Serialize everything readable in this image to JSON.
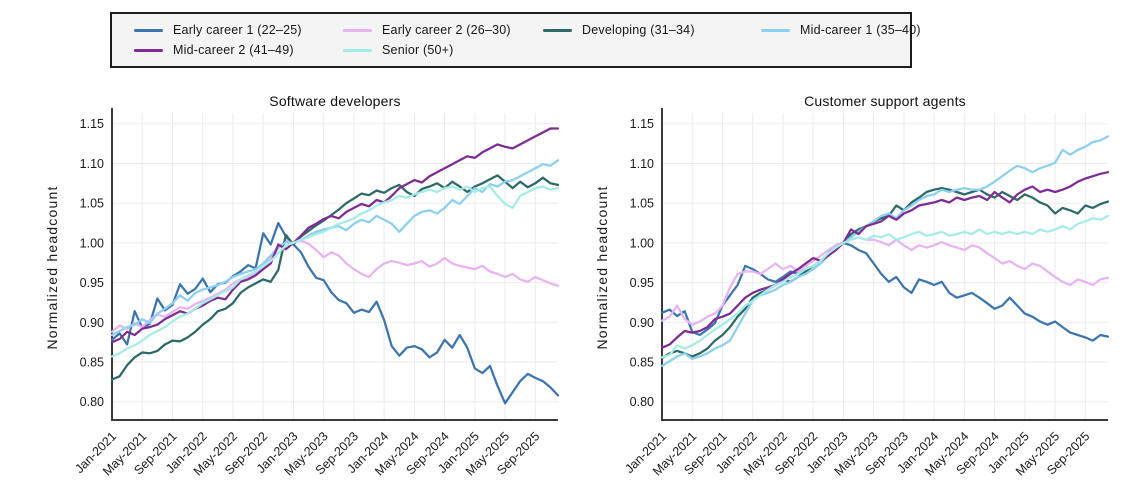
{
  "legend": {
    "items": [
      {
        "label": "Early career 1 (22–25)",
        "color": "#3b74af"
      },
      {
        "label": "Early career 2 (26–30)",
        "color": "#e7b3f0"
      },
      {
        "label": "Developing (31–34)",
        "color": "#2d6967"
      },
      {
        "label": "Mid-career 1 (35–40)",
        "color": "#8cd0f0"
      },
      {
        "label": "Mid-career 2 (41–49)",
        "color": "#7c2c93"
      },
      {
        "label": "Senior (50+)",
        "color": "#a6ece6"
      }
    ]
  },
  "chart_data": [
    {
      "type": "line",
      "title": "Software developers",
      "xlabel": "",
      "ylabel": "Normalized headcount",
      "x_unit": "month",
      "x_range": [
        "Jan-2021",
        "Dec-2025"
      ],
      "xtick_labels": [
        "Jan-2021",
        "May-2021",
        "Sep-2021",
        "Jan-2022",
        "May-2022",
        "Sep-2022",
        "Jan-2023",
        "May-2023",
        "Sep-2023",
        "Jan-2024",
        "May-2024",
        "Sep-2024",
        "Jan-2025",
        "May-2025",
        "Sep-2025"
      ],
      "xtick_indices": [
        0,
        4,
        8,
        12,
        16,
        20,
        24,
        28,
        32,
        36,
        40,
        44,
        48,
        52,
        56
      ],
      "yticks": [
        0.8,
        0.85,
        0.9,
        0.95,
        1.0,
        1.05,
        1.1,
        1.15
      ],
      "ylim": [
        0.777,
        1.161
      ],
      "grid": true,
      "legend_position": "top-outside",
      "margin_left": 112,
      "series": [
        {
          "name": "Early career 1 (22–25)",
          "color": "#3b74af",
          "values": [
            0.878,
            0.886,
            0.872,
            0.914,
            0.893,
            0.898,
            0.93,
            0.915,
            0.922,
            0.948,
            0.936,
            0.942,
            0.955,
            0.938,
            0.948,
            0.95,
            0.958,
            0.964,
            0.972,
            0.968,
            1.012,
            0.998,
            1.025,
            1.008,
            0.998,
            0.988,
            0.97,
            0.956,
            0.953,
            0.938,
            0.928,
            0.924,
            0.912,
            0.916,
            0.913,
            0.926,
            0.903,
            0.87,
            0.858,
            0.868,
            0.87,
            0.866,
            0.856,
            0.862,
            0.878,
            0.868,
            0.884,
            0.868,
            0.842,
            0.836,
            0.845,
            0.82,
            0.798,
            0.812,
            0.826,
            0.835,
            0.83,
            0.826,
            0.818,
            0.808
          ]
        },
        {
          "name": "Early career 2 (26–30)",
          "color": "#e7b3f0",
          "values": [
            0.888,
            0.896,
            0.892,
            0.899,
            0.894,
            0.903,
            0.91,
            0.907,
            0.913,
            0.919,
            0.917,
            0.923,
            0.927,
            0.931,
            0.936,
            0.941,
            0.949,
            0.954,
            0.957,
            0.961,
            0.973,
            0.98,
            0.993,
            1.003,
            1.0,
            1.003,
            0.999,
            0.991,
            0.982,
            0.988,
            0.984,
            0.974,
            0.967,
            0.961,
            0.957,
            0.967,
            0.974,
            0.977,
            0.975,
            0.972,
            0.974,
            0.977,
            0.97,
            0.974,
            0.981,
            0.974,
            0.971,
            0.969,
            0.967,
            0.971,
            0.964,
            0.961,
            0.957,
            0.961,
            0.954,
            0.951,
            0.957,
            0.953,
            0.949,
            0.946
          ]
        },
        {
          "name": "Developing (31–34)",
          "color": "#2d6967",
          "values": [
            0.828,
            0.832,
            0.846,
            0.856,
            0.862,
            0.861,
            0.864,
            0.872,
            0.877,
            0.876,
            0.881,
            0.888,
            0.897,
            0.904,
            0.914,
            0.917,
            0.924,
            0.937,
            0.944,
            0.949,
            0.954,
            0.951,
            0.966,
            1.01,
            0.998,
            1.008,
            1.015,
            1.022,
            1.028,
            1.035,
            1.042,
            1.05,
            1.056,
            1.062,
            1.06,
            1.066,
            1.063,
            1.069,
            1.073,
            1.064,
            1.059,
            1.068,
            1.071,
            1.075,
            1.069,
            1.077,
            1.071,
            1.064,
            1.071,
            1.075,
            1.08,
            1.085,
            1.077,
            1.069,
            1.077,
            1.07,
            1.075,
            1.082,
            1.075,
            1.073
          ]
        },
        {
          "name": "Mid-career 1 (35–40)",
          "color": "#8cd0f0",
          "values": [
            0.884,
            0.889,
            0.894,
            0.897,
            0.904,
            0.899,
            0.911,
            0.917,
            0.924,
            0.934,
            0.927,
            0.937,
            0.941,
            0.944,
            0.947,
            0.951,
            0.957,
            0.961,
            0.964,
            0.967,
            0.974,
            0.984,
            0.994,
            1.001,
            1.0,
            1.004,
            1.009,
            1.014,
            1.017,
            1.019,
            1.021,
            1.016,
            1.024,
            1.029,
            1.026,
            1.034,
            1.029,
            1.024,
            1.014,
            1.024,
            1.034,
            1.039,
            1.041,
            1.037,
            1.044,
            1.054,
            1.049,
            1.059,
            1.069,
            1.064,
            1.074,
            1.071,
            1.077,
            1.079,
            1.084,
            1.089,
            1.094,
            1.099,
            1.097,
            1.104
          ]
        },
        {
          "name": "Mid-career 2 (41–49)",
          "color": "#7c2c93",
          "values": [
            0.875,
            0.879,
            0.888,
            0.884,
            0.892,
            0.894,
            0.897,
            0.904,
            0.909,
            0.914,
            0.911,
            0.917,
            0.921,
            0.927,
            0.931,
            0.929,
            0.941,
            0.951,
            0.954,
            0.959,
            0.967,
            0.974,
            0.998,
            0.992,
            1.0,
            1.009,
            1.019,
            1.024,
            1.03,
            1.034,
            1.031,
            1.039,
            1.044,
            1.049,
            1.046,
            1.054,
            1.051,
            1.059,
            1.069,
            1.074,
            1.079,
            1.076,
            1.084,
            1.089,
            1.094,
            1.099,
            1.104,
            1.109,
            1.107,
            1.114,
            1.119,
            1.124,
            1.121,
            1.119,
            1.124,
            1.129,
            1.134,
            1.139,
            1.144,
            1.144
          ]
        },
        {
          "name": "Senior (50+)",
          "color": "#a6ece6",
          "values": [
            0.857,
            0.861,
            0.867,
            0.871,
            0.877,
            0.884,
            0.889,
            0.894,
            0.901,
            0.907,
            0.911,
            0.917,
            0.924,
            0.929,
            0.934,
            0.939,
            0.944,
            0.954,
            0.959,
            0.964,
            0.971,
            0.977,
            0.987,
            0.997,
            1.0,
            1.004,
            1.007,
            1.011,
            1.014,
            1.019,
            1.024,
            1.027,
            1.031,
            1.037,
            1.041,
            1.047,
            1.051,
            1.054,
            1.059,
            1.057,
            1.061,
            1.064,
            1.067,
            1.064,
            1.069,
            1.071,
            1.067,
            1.071,
            1.064,
            1.069,
            1.071,
            1.059,
            1.049,
            1.044,
            1.059,
            1.064,
            1.069,
            1.071,
            1.067,
            1.069
          ]
        }
      ]
    },
    {
      "type": "line",
      "title": "Customer support agents",
      "xlabel": "",
      "ylabel": "Normalized headcount",
      "x_unit": "month",
      "x_range": [
        "Jan-2021",
        "Dec-2025"
      ],
      "xtick_labels": [
        "Jan-2021",
        "May-2021",
        "Sep-2021",
        "Jan-2022",
        "May-2022",
        "Sep-2022",
        "Jan-2023",
        "May-2023",
        "Sep-2023",
        "Jan-2024",
        "May-2024",
        "Sep-2024",
        "Jan-2025",
        "May-2025",
        "Sep-2025"
      ],
      "xtick_indices": [
        0,
        4,
        8,
        12,
        16,
        20,
        24,
        28,
        32,
        36,
        40,
        44,
        48,
        52,
        56
      ],
      "yticks": [
        0.8,
        0.85,
        0.9,
        0.95,
        1.0,
        1.05,
        1.1,
        1.15
      ],
      "ylim": [
        0.777,
        1.161
      ],
      "grid": true,
      "legend_position": "top-outside",
      "margin_left": 89,
      "series": [
        {
          "name": "Early career 1 (22–25)",
          "color": "#3b74af",
          "values": [
            0.912,
            0.916,
            0.908,
            0.914,
            0.888,
            0.884,
            0.891,
            0.899,
            0.921,
            0.934,
            0.947,
            0.971,
            0.967,
            0.961,
            0.954,
            0.951,
            0.957,
            0.964,
            0.961,
            0.967,
            0.971,
            0.977,
            0.987,
            0.997,
            1.0,
            0.997,
            0.991,
            0.987,
            0.974,
            0.961,
            0.951,
            0.957,
            0.944,
            0.937,
            0.954,
            0.951,
            0.947,
            0.951,
            0.937,
            0.931,
            0.934,
            0.937,
            0.931,
            0.924,
            0.917,
            0.921,
            0.931,
            0.921,
            0.911,
            0.907,
            0.901,
            0.897,
            0.901,
            0.894,
            0.887,
            0.884,
            0.881,
            0.877,
            0.884,
            0.882
          ]
        },
        {
          "name": "Early career 2 (26–30)",
          "color": "#e7b3f0",
          "values": [
            0.902,
            0.907,
            0.921,
            0.904,
            0.897,
            0.901,
            0.907,
            0.911,
            0.921,
            0.944,
            0.961,
            0.964,
            0.964,
            0.961,
            0.967,
            0.974,
            0.967,
            0.971,
            0.964,
            0.971,
            0.977,
            0.984,
            0.991,
            0.997,
            1.0,
            1.004,
            1.007,
            1.004,
            1.004,
            1.001,
            0.997,
            1.004,
            0.997,
            0.991,
            0.997,
            0.994,
            0.997,
            1.001,
            0.997,
            0.994,
            0.991,
            0.997,
            0.994,
            0.987,
            0.981,
            0.974,
            0.977,
            0.971,
            0.967,
            0.974,
            0.971,
            0.964,
            0.957,
            0.951,
            0.947,
            0.954,
            0.951,
            0.947,
            0.954,
            0.956
          ]
        },
        {
          "name": "Developing (31–34)",
          "color": "#2d6967",
          "values": [
            0.855,
            0.861,
            0.864,
            0.861,
            0.857,
            0.861,
            0.867,
            0.877,
            0.884,
            0.894,
            0.907,
            0.917,
            0.931,
            0.937,
            0.941,
            0.947,
            0.954,
            0.951,
            0.957,
            0.964,
            0.971,
            0.977,
            0.984,
            0.994,
            1.0,
            1.011,
            1.017,
            1.021,
            1.027,
            1.031,
            1.034,
            1.047,
            1.041,
            1.051,
            1.057,
            1.064,
            1.067,
            1.069,
            1.067,
            1.064,
            1.061,
            1.064,
            1.067,
            1.061,
            1.057,
            1.064,
            1.059,
            1.054,
            1.061,
            1.057,
            1.051,
            1.047,
            1.037,
            1.044,
            1.041,
            1.037,
            1.047,
            1.044,
            1.049,
            1.052
          ]
        },
        {
          "name": "Mid-career 1 (35–40)",
          "color": "#8cd0f0",
          "values": [
            0.845,
            0.851,
            0.857,
            0.861,
            0.854,
            0.857,
            0.861,
            0.867,
            0.871,
            0.877,
            0.894,
            0.911,
            0.927,
            0.934,
            0.937,
            0.941,
            0.947,
            0.951,
            0.957,
            0.961,
            0.967,
            0.974,
            0.984,
            0.991,
            1.0,
            1.007,
            1.014,
            1.021,
            1.027,
            1.034,
            1.037,
            1.031,
            1.041,
            1.047,
            1.054,
            1.059,
            1.061,
            1.067,
            1.064,
            1.067,
            1.069,
            1.067,
            1.067,
            1.071,
            1.077,
            1.084,
            1.091,
            1.097,
            1.094,
            1.089,
            1.094,
            1.097,
            1.101,
            1.117,
            1.111,
            1.117,
            1.121,
            1.127,
            1.129,
            1.134
          ]
        },
        {
          "name": "Mid-career 2 (41–49)",
          "color": "#7c2c93",
          "values": [
            0.868,
            0.872,
            0.881,
            0.889,
            0.887,
            0.889,
            0.894,
            0.904,
            0.907,
            0.911,
            0.921,
            0.931,
            0.937,
            0.941,
            0.944,
            0.947,
            0.954,
            0.961,
            0.967,
            0.974,
            0.981,
            0.977,
            0.984,
            0.991,
            1.0,
            1.017,
            1.011,
            1.021,
            1.024,
            1.027,
            1.034,
            1.029,
            1.037,
            1.041,
            1.047,
            1.049,
            1.051,
            1.054,
            1.051,
            1.057,
            1.054,
            1.057,
            1.059,
            1.054,
            1.064,
            1.057,
            1.051,
            1.061,
            1.067,
            1.071,
            1.064,
            1.067,
            1.064,
            1.067,
            1.071,
            1.077,
            1.081,
            1.084,
            1.087,
            1.089
          ]
        },
        {
          "name": "Senior (50+)",
          "color": "#a6ece6",
          "values": [
            0.856,
            0.859,
            0.871,
            0.867,
            0.871,
            0.877,
            0.884,
            0.891,
            0.897,
            0.904,
            0.911,
            0.921,
            0.927,
            0.934,
            0.941,
            0.947,
            0.951,
            0.957,
            0.961,
            0.967,
            0.971,
            0.977,
            0.987,
            0.994,
            1.0,
            1.004,
            1.007,
            1.004,
            1.009,
            1.007,
            1.011,
            1.004,
            1.007,
            1.011,
            1.014,
            1.009,
            1.011,
            1.014,
            1.009,
            1.011,
            1.014,
            1.011,
            1.017,
            1.011,
            1.014,
            1.011,
            1.014,
            1.011,
            1.014,
            1.011,
            1.017,
            1.014,
            1.017,
            1.021,
            1.017,
            1.024,
            1.027,
            1.031,
            1.029,
            1.034
          ]
        }
      ]
    }
  ]
}
